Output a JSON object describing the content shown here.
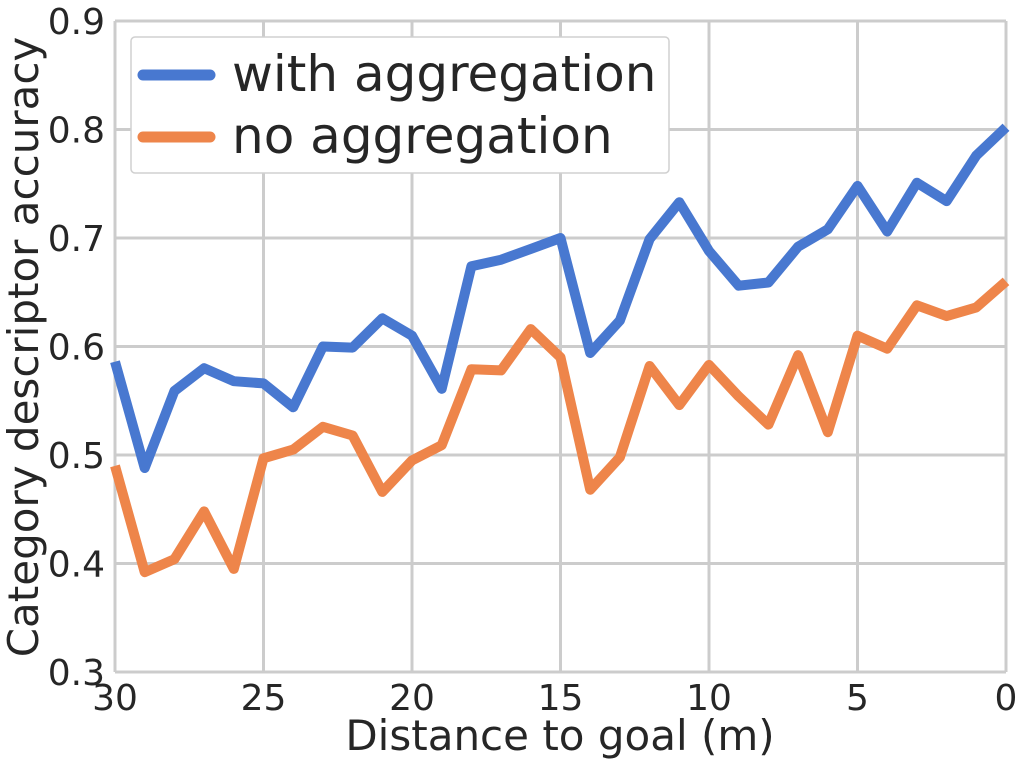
{
  "chart_data": {
    "type": "line",
    "title": "",
    "xlabel": "Distance to goal (m)",
    "ylabel": "Category descriptor accuracy",
    "xlim": [
      30,
      0
    ],
    "ylim": [
      0.3,
      0.9
    ],
    "x_reversed": true,
    "xticks": [
      30,
      25,
      20,
      15,
      10,
      5,
      0
    ],
    "yticks": [
      0.3,
      0.4,
      0.5,
      0.6,
      0.7,
      0.8,
      0.9
    ],
    "xtick_labels": [
      "30",
      "25",
      "20",
      "15",
      "10",
      "5",
      "0"
    ],
    "ytick_labels": [
      "0.3",
      "0.4",
      "0.5",
      "0.6",
      "0.7",
      "0.8",
      "0.9"
    ],
    "grid": true,
    "legend_position": "top-left",
    "x": [
      30,
      29,
      28,
      27,
      26,
      25,
      24,
      23,
      22,
      21,
      20,
      19,
      18,
      17,
      16,
      15,
      14,
      13,
      12,
      11,
      10,
      9,
      8,
      7,
      6,
      5,
      4,
      3,
      2,
      1,
      0
    ],
    "series": [
      {
        "name": "with aggregation",
        "color": "#4878d0",
        "values": [
          0.586,
          0.488,
          0.559,
          0.58,
          0.568,
          0.566,
          0.544,
          0.6,
          0.599,
          0.626,
          0.61,
          0.561,
          0.674,
          0.68,
          0.69,
          0.7,
          0.594,
          0.624,
          0.699,
          0.733,
          0.688,
          0.656,
          0.659,
          0.692,
          0.708,
          0.748,
          0.706,
          0.751,
          0.734,
          0.776,
          0.802
        ]
      },
      {
        "name": "no aggregation",
        "color": "#ee854a",
        "values": [
          0.49,
          0.392,
          0.404,
          0.448,
          0.395,
          0.497,
          0.505,
          0.526,
          0.518,
          0.466,
          0.495,
          0.509,
          0.579,
          0.578,
          0.616,
          0.59,
          0.468,
          0.498,
          0.582,
          0.546,
          0.583,
          0.554,
          0.528,
          0.592,
          0.521,
          0.61,
          0.598,
          0.638,
          0.628,
          0.636,
          0.66
        ]
      }
    ]
  }
}
